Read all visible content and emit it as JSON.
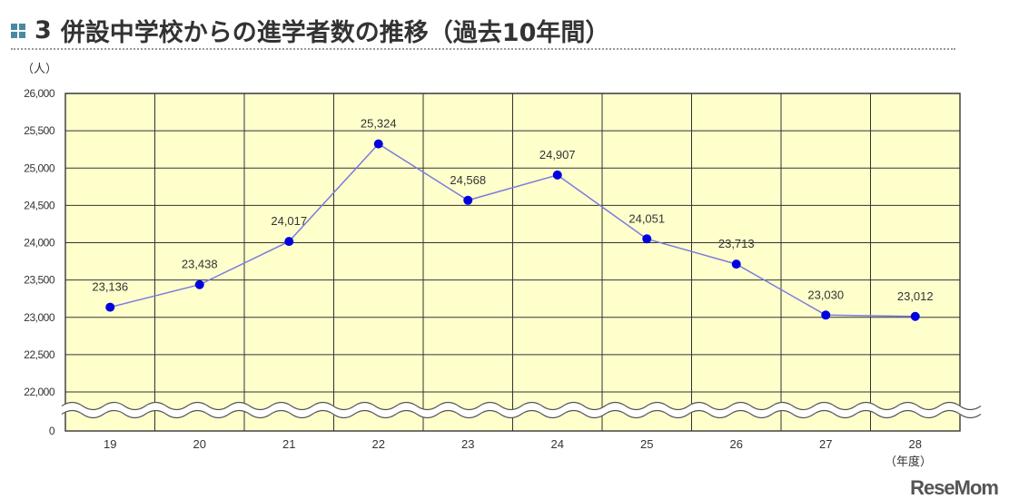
{
  "header": {
    "number": "3",
    "title": "併設中学校からの進学者数の推移（過去10年間）",
    "accent": "#4a8aa0"
  },
  "watermark": "ReseMom",
  "chart_data": {
    "type": "line",
    "title": "併設中学校からの進学者数の推移（過去10年間）",
    "ylabel": "（人）",
    "xlabel": "（年度）",
    "categories": [
      "19",
      "20",
      "21",
      "22",
      "23",
      "24",
      "25",
      "26",
      "27",
      "28"
    ],
    "values": [
      23136,
      23438,
      24017,
      25324,
      24568,
      24907,
      24051,
      23713,
      23030,
      23012
    ],
    "data_labels": [
      "23,136",
      "23,438",
      "24,017",
      "25,324",
      "24,568",
      "24,907",
      "24,051",
      "23,713",
      "23,030",
      "23,012"
    ],
    "yticks": [
      "26,000",
      "25,500",
      "25,000",
      "24,500",
      "24,000",
      "23,500",
      "23,000",
      "22,500",
      "22,000",
      "0"
    ],
    "ylim": [
      22000,
      26000
    ],
    "axis_break": true,
    "grid": true,
    "colors": {
      "plot_bg": "#ffffcc",
      "line": "#7b7bde",
      "marker": "#0000e0",
      "grid": "#333333"
    }
  }
}
